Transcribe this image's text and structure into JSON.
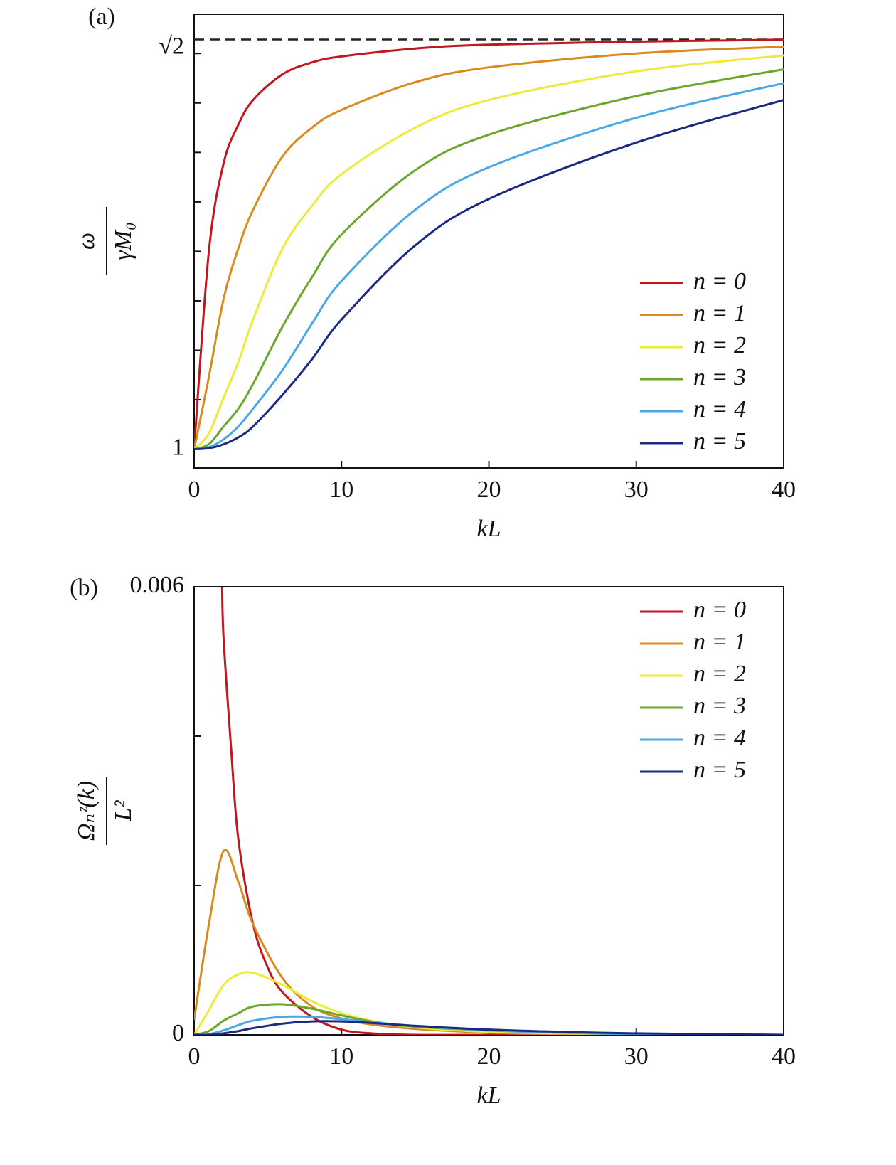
{
  "chart_data": [
    {
      "type": "line",
      "label": "(a)",
      "xlabel": "kL",
      "ylabel": {
        "numerator": "ω",
        "denominator": "γM₀"
      },
      "xlim": [
        0,
        40
      ],
      "xticks": [
        0,
        10,
        20,
        30,
        40
      ],
      "ylim": [
        0.981,
        1.4397
      ],
      "yticks": [
        1,
        {
          "value": 1.41421,
          "label": "√2"
        }
      ],
      "yticks_minor": [
        1.05,
        1.1,
        1.15,
        1.2,
        1.25,
        1.3,
        1.35,
        1.4
      ],
      "hline": {
        "value": 1.41421,
        "style": "dashed",
        "color": "#222222"
      },
      "legend": "lower right",
      "series": [
        {
          "name": "n = 0",
          "color": "#c0161c",
          "x": [
            0,
            1,
            2,
            3,
            4,
            6,
            8,
            10,
            15,
            20,
            30,
            40
          ],
          "values": [
            1.0,
            1.2,
            1.289,
            1.328,
            1.353,
            1.379,
            1.391,
            1.397,
            1.405,
            1.409,
            1.412,
            1.414
          ]
        },
        {
          "name": "n = 1",
          "color": "#d98a1f",
          "x": [
            0,
            1,
            2,
            3,
            4,
            6,
            8,
            10,
            15,
            20,
            30,
            40
          ],
          "values": [
            1.0,
            1.073,
            1.152,
            1.203,
            1.242,
            1.296,
            1.325,
            1.343,
            1.371,
            1.386,
            1.4,
            1.407
          ]
        },
        {
          "name": "n = 2",
          "color": "#ecea3a",
          "x": [
            0,
            1,
            2,
            3,
            4,
            6,
            8,
            10,
            15,
            20,
            30,
            40
          ],
          "values": [
            1.0,
            1.016,
            1.052,
            1.088,
            1.131,
            1.203,
            1.246,
            1.278,
            1.325,
            1.353,
            1.382,
            1.398
          ]
        },
        {
          "name": "n = 3",
          "color": "#6aa62a",
          "x": [
            0,
            1,
            2,
            3,
            4,
            6,
            8,
            10,
            15,
            20,
            30,
            40
          ],
          "values": [
            1.0,
            1.005,
            1.023,
            1.041,
            1.066,
            1.124,
            1.174,
            1.217,
            1.282,
            1.318,
            1.357,
            1.384
          ]
        },
        {
          "name": "n = 4",
          "color": "#4aa8e8",
          "x": [
            0,
            1,
            2,
            3,
            4,
            6,
            8,
            10,
            15,
            20,
            30,
            40
          ],
          "values": [
            1.0,
            1.002,
            1.01,
            1.023,
            1.041,
            1.08,
            1.127,
            1.17,
            1.242,
            1.285,
            1.335,
            1.37
          ]
        },
        {
          "name": "n = 5",
          "color": "#1a2a80",
          "x": [
            0,
            1,
            2,
            3,
            4,
            6,
            8,
            10,
            15,
            20,
            30,
            40
          ],
          "values": [
            1.0,
            1.001,
            1.005,
            1.012,
            1.023,
            1.055,
            1.091,
            1.131,
            1.206,
            1.253,
            1.31,
            1.353
          ]
        }
      ]
    },
    {
      "type": "line",
      "label": "(b)",
      "xlabel": "kL",
      "ylabel": {
        "numerator": "Ωₙᶻ(k)",
        "denominator": "L²"
      },
      "xlim": [
        0,
        40
      ],
      "xticks": [
        0,
        10,
        20,
        30,
        40
      ],
      "ylim": [
        0,
        0.006
      ],
      "yticks": [
        0,
        0.006
      ],
      "yticks_minor": [
        0.002,
        0.004
      ],
      "legend": "upper right",
      "series": [
        {
          "name": "n = 0",
          "color": "#c0161c",
          "x": [
            1.9,
            2,
            2.5,
            3,
            4,
            5,
            6,
            8,
            10,
            12,
            15,
            20,
            30,
            40
          ],
          "values": [
            0.006,
            0.0053,
            0.00386,
            0.00262,
            0.00148,
            0.0009,
            0.00057,
            0.00024,
            7e-05,
            2e-05,
            0,
            0,
            0,
            0
          ]
        },
        {
          "name": "n = 1",
          "color": "#d98a1f",
          "x": [
            0,
            1,
            2,
            3,
            4,
            6,
            8,
            10,
            12,
            15,
            20,
            25,
            30,
            40
          ],
          "values": [
            0.0002,
            0.00148,
            0.00246,
            0.00205,
            0.00148,
            0.00076,
            0.00038,
            0.00022,
            0.00014,
            8e-05,
            3e-05,
            1e-05,
            0,
            0
          ]
        },
        {
          "name": "n = 2",
          "color": "#ecea3a",
          "x": [
            0,
            1,
            2,
            3,
            4,
            6,
            8,
            10,
            12,
            15,
            20,
            25,
            30,
            40
          ],
          "values": [
            0,
            0.00033,
            0.00067,
            0.00081,
            0.00083,
            0.00067,
            0.00045,
            0.00029,
            0.00019,
            0.0001,
            4e-05,
            2e-05,
            1e-05,
            0
          ]
        },
        {
          "name": "n = 3",
          "color": "#6aa62a",
          "x": [
            0,
            1,
            2,
            3,
            4,
            6,
            8,
            10,
            12,
            15,
            20,
            25,
            30,
            40
          ],
          "values": [
            0,
            5e-05,
            0.00019,
            0.00029,
            0.00038,
            0.00041,
            0.00035,
            0.00026,
            0.00018,
            0.00011,
            6e-05,
            3e-05,
            1e-05,
            0
          ]
        },
        {
          "name": "n = 4",
          "color": "#4aa8e8",
          "x": [
            0,
            1,
            2,
            3,
            4,
            6,
            8,
            10,
            12,
            15,
            20,
            25,
            30,
            40
          ],
          "values": [
            0,
            1e-05,
            6e-05,
            0.00013,
            0.00019,
            0.00024,
            0.00024,
            0.00021,
            0.00017,
            0.00012,
            6e-05,
            3e-05,
            1e-05,
            0
          ]
        },
        {
          "name": "n = 5",
          "color": "#1a2a80",
          "x": [
            0,
            1,
            2,
            3,
            4,
            6,
            8,
            10,
            12,
            15,
            20,
            25,
            30,
            40
          ],
          "values": [
            0,
            0,
            2e-05,
            5e-05,
            9e-05,
            0.00015,
            0.00018,
            0.00018,
            0.00016,
            0.00012,
            7e-05,
            4e-05,
            2e-05,
            0
          ]
        }
      ]
    }
  ]
}
